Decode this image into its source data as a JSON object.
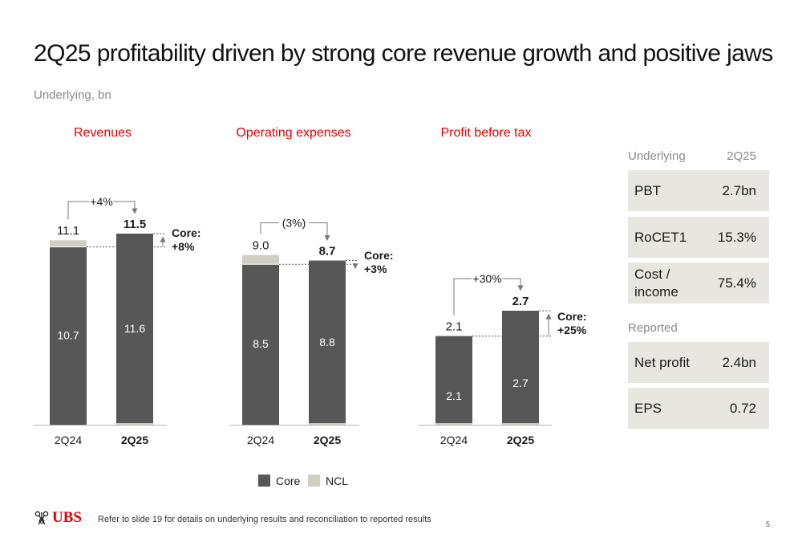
{
  "title": "2Q25 profitability driven by strong core revenue growth and positive jaws",
  "subtitle": "Underlying, bn",
  "colors": {
    "core": "#575757",
    "ncl": "#d1cfc4",
    "accent": "#e60000",
    "table_bg": "#e8e6e0"
  },
  "chart_data": [
    {
      "type": "bar",
      "stacked": true,
      "title": "Revenues",
      "categories": [
        "2Q24",
        "2Q25"
      ],
      "series": [
        {
          "name": "Core",
          "values": [
            10.7,
            11.6
          ]
        },
        {
          "name": "NCL",
          "values": [
            0.4,
            -0.1
          ]
        }
      ],
      "totals": [
        "11.1",
        "11.5"
      ],
      "core_labels": [
        "10.7",
        "11.6"
      ],
      "growth_label": "+4%",
      "core_growth_label": "Core:\n+8%"
    },
    {
      "type": "bar",
      "stacked": true,
      "title": "Operating expenses",
      "categories": [
        "2Q24",
        "2Q25"
      ],
      "series": [
        {
          "name": "Core",
          "values": [
            8.5,
            8.8
          ]
        },
        {
          "name": "NCL",
          "values": [
            0.5,
            -0.1
          ]
        }
      ],
      "totals": [
        "9.0",
        "8.7"
      ],
      "core_labels": [
        "8.5",
        "8.8"
      ],
      "growth_label": "(3%)",
      "core_growth_label": "Core:\n+3%"
    },
    {
      "type": "bar",
      "stacked": true,
      "title": "Profit before tax",
      "categories": [
        "2Q24",
        "2Q25"
      ],
      "series": [
        {
          "name": "Core",
          "values": [
            2.1,
            2.7
          ]
        },
        {
          "name": "NCL",
          "values": [
            0.0,
            0.0
          ]
        }
      ],
      "totals": [
        "2.1",
        "2.7"
      ],
      "core_labels": [
        "2.1",
        "2.7"
      ],
      "growth_label": "+30%",
      "core_growth_label": "Core:\n+25%"
    }
  ],
  "legend": [
    {
      "name": "Core"
    },
    {
      "name": "NCL"
    }
  ],
  "table": {
    "header": {
      "label": "Underlying",
      "period": "2Q25"
    },
    "underlying_rows": [
      {
        "label": "PBT",
        "value": "2.7bn"
      },
      {
        "label": "RoCET1",
        "value": "15.3%"
      },
      {
        "label": "Cost /\nincome",
        "value": "75.4%"
      }
    ],
    "reported_label": "Reported",
    "reported_rows": [
      {
        "label": "Net profit",
        "value": "2.4bn"
      },
      {
        "label": "EPS",
        "value": "0.72"
      }
    ]
  },
  "footer": {
    "logo_text": "UBS",
    "note": "Refer to slide 19 for details on underlying results and reconciliation to reported results",
    "page_number": "5"
  }
}
